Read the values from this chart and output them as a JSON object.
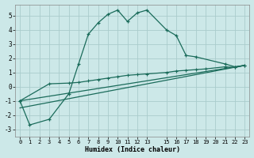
{
  "xlabel": "Humidex (Indice chaleur)",
  "bg_color": "#cce8e8",
  "grid_color": "#aacccc",
  "line_color": "#1a6b5a",
  "xlim": [
    -0.5,
    23.5
  ],
  "ylim": [
    -3.5,
    5.8
  ],
  "yticks": [
    -3,
    -2,
    -1,
    0,
    1,
    2,
    3,
    4,
    5
  ],
  "xticks": [
    0,
    1,
    2,
    3,
    4,
    5,
    6,
    7,
    8,
    9,
    10,
    11,
    12,
    13,
    15,
    16,
    17,
    18,
    19,
    20,
    21,
    22,
    23
  ],
  "series1_x": [
    0,
    1,
    3,
    5,
    6,
    7,
    8,
    9,
    10,
    11,
    12,
    13,
    15,
    16,
    17,
    18,
    21,
    22,
    23
  ],
  "series1_y": [
    -1.0,
    -2.7,
    -2.3,
    -0.5,
    1.6,
    3.7,
    4.5,
    5.1,
    5.4,
    4.6,
    5.2,
    5.4,
    4.0,
    3.6,
    2.2,
    2.1,
    1.6,
    1.4,
    1.5
  ],
  "series2_x": [
    0,
    3,
    5,
    6,
    7,
    8,
    9,
    10,
    11,
    12,
    13,
    15,
    16,
    17,
    18,
    19,
    21,
    22,
    23
  ],
  "series2_y": [
    -1.0,
    0.2,
    0.25,
    0.3,
    0.4,
    0.5,
    0.6,
    0.7,
    0.8,
    0.85,
    0.9,
    1.0,
    1.1,
    1.15,
    1.2,
    1.25,
    1.4,
    1.35,
    1.5
  ],
  "series3_x": [
    0,
    23
  ],
  "series3_y": [
    -1.0,
    1.5
  ],
  "series4_x": [
    0,
    23
  ],
  "series4_y": [
    -1.5,
    1.5
  ]
}
